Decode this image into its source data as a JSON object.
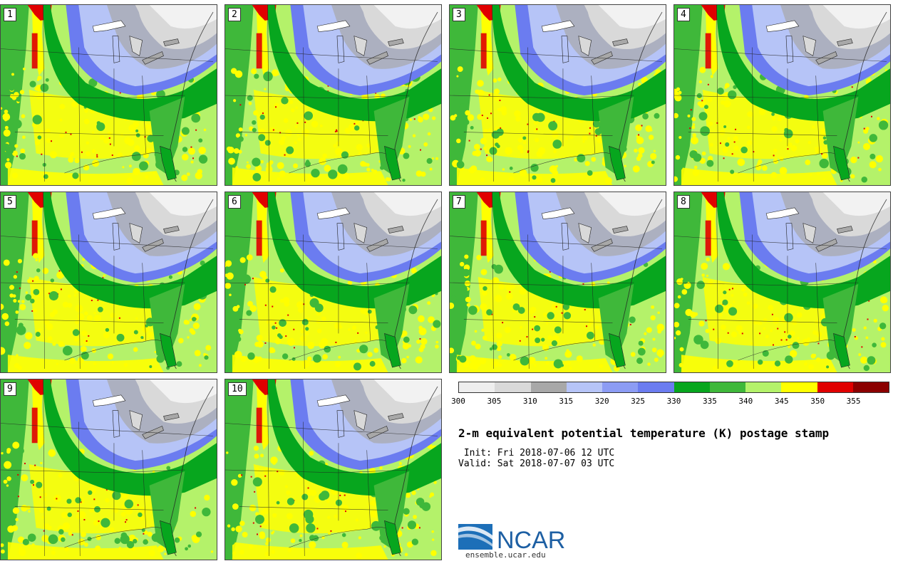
{
  "panels": [
    {
      "label": "1"
    },
    {
      "label": "2"
    },
    {
      "label": "3"
    },
    {
      "label": "4"
    },
    {
      "label": "5"
    },
    {
      "label": "6"
    },
    {
      "label": "7"
    },
    {
      "label": "8"
    },
    {
      "label": "9"
    },
    {
      "label": "10"
    }
  ],
  "colorbar": {
    "ticks": [
      "300",
      "305",
      "310",
      "315",
      "320",
      "325",
      "330",
      "335",
      "340",
      "345",
      "350",
      "355"
    ],
    "colors": [
      "#eeeeee",
      "#d9d9d9",
      "#a8a8a8",
      "#b6c4f7",
      "#8c9cf4",
      "#6b7cf0",
      "#07a61e",
      "#3fb83a",
      "#b4f26a",
      "#ffff00",
      "#e00000",
      "#8b0000"
    ]
  },
  "title": "2-m equivalent potential temperature (K) postage stamp",
  "init_text": " Init: Fri 2018-07-06 12 UTC",
  "valid_text": "Valid: Sat 2018-07-07 03 UTC",
  "logo": {
    "text": "NCAR",
    "url": "ensemble.ucar.edu"
  },
  "map_colors": {
    "warm_base": "#b4f26a",
    "green_dark": "#07a61e",
    "green_mid": "#3fb83a",
    "yellow": "#ffff00",
    "red": "#e00000",
    "blue_dark": "#6b7cf0",
    "blue_light": "#b6c4f7",
    "gray_dark": "#a8a8a8",
    "gray_light": "#d9d9d9",
    "white": "#f2f2f2",
    "lines": "#222222"
  }
}
